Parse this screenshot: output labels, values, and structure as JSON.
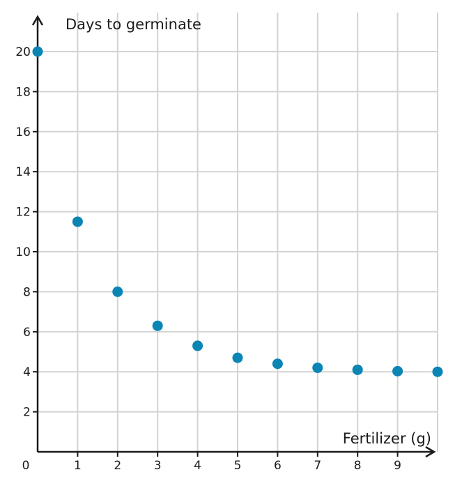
{
  "chart_data": {
    "type": "scatter",
    "xlabel": "Fertilizer (g)",
    "ylabel": "Days to germinate",
    "origin_label": "0",
    "xlim": [
      0,
      10
    ],
    "ylim": [
      0,
      22
    ],
    "x_ticks": [
      1,
      2,
      3,
      4,
      5,
      6,
      7,
      8,
      9
    ],
    "y_ticks": [
      2,
      4,
      6,
      8,
      10,
      12,
      14,
      16,
      18,
      20
    ],
    "grid": true,
    "series": [
      {
        "color": "#0a85b4",
        "points": [
          {
            "x": 0,
            "y": 20
          },
          {
            "x": 1,
            "y": 11.5
          },
          {
            "x": 2,
            "y": 8
          },
          {
            "x": 3,
            "y": 6.3
          },
          {
            "x": 4,
            "y": 5.3
          },
          {
            "x": 5,
            "y": 4.7
          },
          {
            "x": 6,
            "y": 4.4
          },
          {
            "x": 7,
            "y": 4.2
          },
          {
            "x": 8,
            "y": 4.1
          },
          {
            "x": 9,
            "y": 4.03
          },
          {
            "x": 10,
            "y": 4
          }
        ]
      }
    ]
  }
}
